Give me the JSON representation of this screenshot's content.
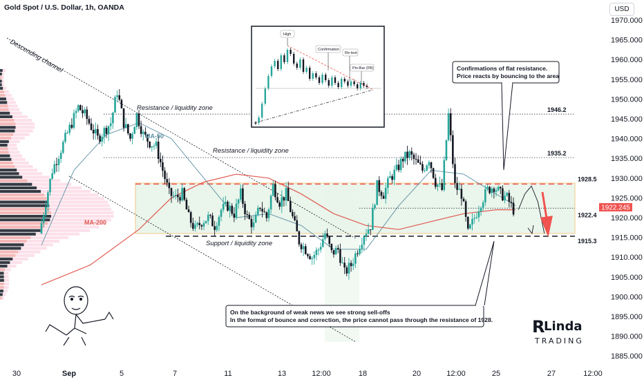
{
  "header": {
    "title": "Gold Spot / U.S. Dollar, 1h, OANDA",
    "currency_button": "USD"
  },
  "chart_data": {
    "type": "candlestick",
    "y_axis": {
      "ticks": [
        1885,
        1890,
        1895,
        1900,
        1905,
        1910,
        1915,
        1920,
        1925,
        1930,
        1935,
        1940,
        1945,
        1950,
        1955,
        1960,
        1965,
        1970
      ],
      "ylim": [
        1883,
        1973
      ]
    },
    "x_axis": {
      "ticks": [
        "30",
        "Sep",
        "5",
        "7",
        "11",
        "13",
        "12:00",
        "18",
        "20",
        "12:00",
        "25",
        "27",
        "12:00"
      ]
    },
    "current_price": "1922.245",
    "price_path": [
      [
        0,
        1916
      ],
      [
        2,
        1924
      ],
      [
        4,
        1932
      ],
      [
        6,
        1936
      ],
      [
        8,
        1940
      ],
      [
        10,
        1944
      ],
      [
        12,
        1948
      ],
      [
        14,
        1946
      ],
      [
        16,
        1943
      ],
      [
        18,
        1940
      ],
      [
        20,
        1942
      ],
      [
        22,
        1944
      ],
      [
        24,
        1952
      ],
      [
        26,
        1944
      ],
      [
        28,
        1940
      ],
      [
        30,
        1946
      ],
      [
        32,
        1941
      ],
      [
        34,
        1939
      ],
      [
        36,
        1938
      ],
      [
        38,
        1932
      ],
      [
        40,
        1926
      ],
      [
        42,
        1925
      ],
      [
        44,
        1926
      ],
      [
        46,
        1920
      ],
      [
        48,
        1917
      ],
      [
        50,
        1919
      ],
      [
        52,
        1920
      ],
      [
        54,
        1918
      ],
      [
        56,
        1922
      ],
      [
        58,
        1923
      ],
      [
        60,
        1921
      ],
      [
        62,
        1926
      ],
      [
        64,
        1920
      ],
      [
        66,
        1918
      ],
      [
        68,
        1923
      ],
      [
        70,
        1920
      ],
      [
        72,
        1928
      ],
      [
        74,
        1924
      ],
      [
        76,
        1926
      ],
      [
        78,
        1920
      ],
      [
        80,
        1914
      ],
      [
        82,
        1912
      ],
      [
        84,
        1910
      ],
      [
        86,
        1912
      ],
      [
        88,
        1916
      ],
      [
        90,
        1911
      ],
      [
        92,
        1912
      ],
      [
        94,
        1906
      ],
      [
        96,
        1908
      ],
      [
        98,
        1912
      ],
      [
        100,
        1916
      ],
      [
        102,
        1918
      ],
      [
        104,
        1928
      ],
      [
        106,
        1926
      ],
      [
        108,
        1930
      ],
      [
        110,
        1932
      ],
      [
        112,
        1935
      ],
      [
        114,
        1936
      ],
      [
        116,
        1934
      ],
      [
        118,
        1932
      ],
      [
        120,
        1935
      ],
      [
        122,
        1929
      ],
      [
        124,
        1927
      ],
      [
        126,
        1946
      ],
      [
        128,
        1928
      ],
      [
        130,
        1926
      ],
      [
        132,
        1916
      ],
      [
        134,
        1920
      ],
      [
        136,
        1924
      ],
      [
        138,
        1927
      ],
      [
        140,
        1928
      ],
      [
        142,
        1926
      ],
      [
        144,
        1925
      ],
      [
        146,
        1922
      ]
    ],
    "projection": [
      [
        146,
        1922
      ],
      [
        148,
        1926
      ],
      [
        150,
        1928
      ],
      [
        152,
        1924
      ],
      [
        154,
        1916
      ]
    ],
    "series": [
      {
        "name": "MA-50",
        "color": "#5b8fa3",
        "values": [
          [
            0,
            1913
          ],
          [
            10,
            1932
          ],
          [
            20,
            1941
          ],
          [
            30,
            1944
          ],
          [
            40,
            1940
          ],
          [
            50,
            1930
          ],
          [
            60,
            1920
          ],
          [
            70,
            1921
          ],
          [
            80,
            1918
          ],
          [
            90,
            1912
          ],
          [
            100,
            1912
          ],
          [
            110,
            1923
          ],
          [
            120,
            1932
          ],
          [
            130,
            1931
          ],
          [
            140,
            1926
          ],
          [
            146,
            1923
          ]
        ]
      },
      {
        "name": "MA-200",
        "color": "#e05a52",
        "values": [
          [
            0,
            1903
          ],
          [
            15,
            1908
          ],
          [
            30,
            1917
          ],
          [
            40,
            1925
          ],
          [
            50,
            1929
          ],
          [
            60,
            1931
          ],
          [
            70,
            1930
          ],
          [
            80,
            1926
          ],
          [
            90,
            1921
          ],
          [
            100,
            1918
          ],
          [
            110,
            1917
          ],
          [
            120,
            1919
          ],
          [
            130,
            1921
          ],
          [
            140,
            1922
          ],
          [
            146,
            1922
          ]
        ]
      }
    ],
    "levels": [
      {
        "price": 1946.2,
        "label": "1946.2",
        "style": "dotted"
      },
      {
        "price": 1935.2,
        "label": "1935.2",
        "style": "dotted"
      },
      {
        "price": 1928.5,
        "label": "1928.5",
        "style": "dashed-red"
      },
      {
        "price": 1922.4,
        "label": "1922.4",
        "style": "dotted"
      },
      {
        "price": 1915.3,
        "label": "1915.3",
        "style": "dashed-dark"
      }
    ],
    "annotations": {
      "descending_channel": "Descending channel",
      "resistance_1": "Resistance / liquidity zone",
      "resistance_2": "Resistance / liquidity zone",
      "support": "Support / liquidity zone",
      "ma50_label": "MA-50",
      "ma200_label": "MA-200",
      "note_top": [
        "Confirmations of flat resistance.",
        "Price reacts by bouncing to the area"
      ],
      "note_bottom": [
        "On the background of weak news we see strong sell-offs",
        "In the format of bounce and correction, the price cannot pass through the resistance of 1928."
      ],
      "inset_labels": [
        "High",
        "Confirmation",
        "Re-test",
        "Pin-Bar (FB)"
      ],
      "brand": [
        "RLinda",
        "TRADING"
      ]
    }
  },
  "colors": {
    "up": "#26a69a",
    "down": "#131722",
    "red": "#ef5350",
    "zone": "#c8e6c9",
    "axis_text": "#131722"
  }
}
